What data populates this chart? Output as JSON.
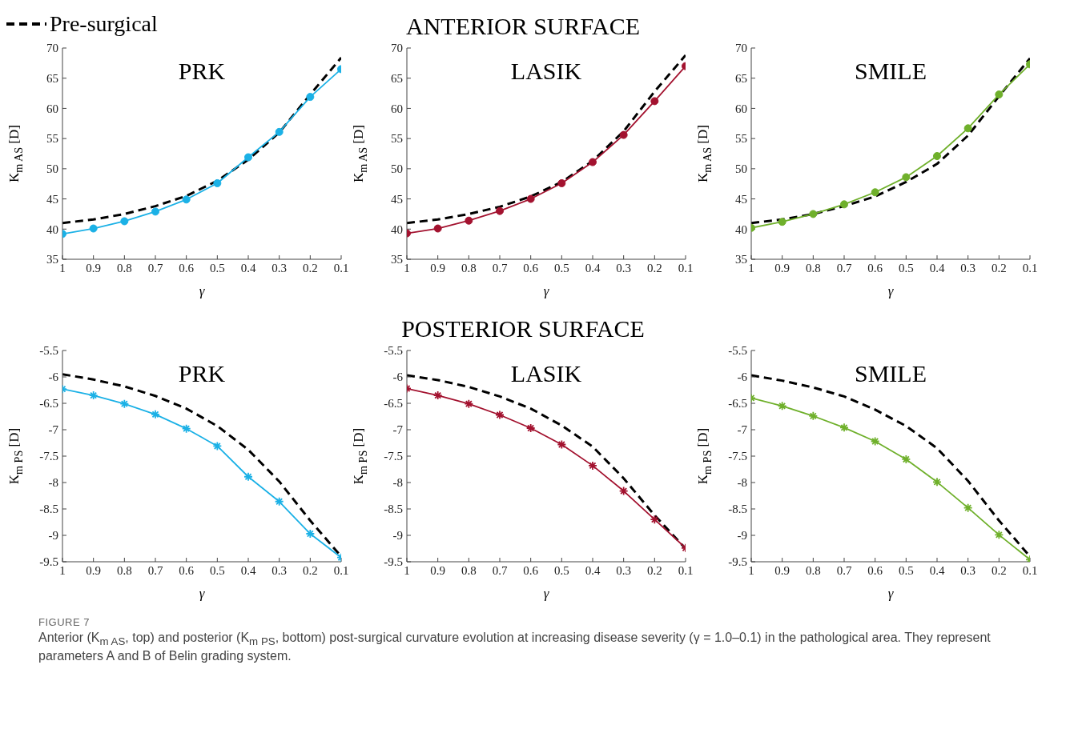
{
  "chart_data": [
    {
      "type": "line",
      "title": "PRK",
      "xlabel": "γ",
      "ylabel": "K$_{m AS}$ [D]",
      "legend": "top left",
      "x": [
        1,
        0.9,
        0.8,
        0.7,
        0.6,
        0.5,
        0.4,
        0.3,
        0.2,
        0.1
      ],
      "xlim": [
        1,
        0.1
      ],
      "xticks": [
        1,
        0.9,
        0.8,
        0.7,
        0.6,
        0.5,
        0.4,
        0.3,
        0.2,
        0.1
      ],
      "ylim": [
        35,
        70
      ],
      "yticks": [
        35,
        40,
        45,
        50,
        55,
        60,
        65,
        70
      ],
      "grid": false,
      "series": [
        {
          "name": "Pre-surgical",
          "color": "#000000",
          "line_style": "dashed",
          "marker": "none",
          "values": [
            41.0,
            41.6,
            42.5,
            43.8,
            45.5,
            48.0,
            51.5,
            56.0,
            62.3,
            68.4
          ]
        },
        {
          "color": "#1bb1e6",
          "line_style": "solid",
          "marker": "circle",
          "values": [
            39.2,
            40.1,
            41.3,
            42.9,
            44.9,
            47.6,
            51.9,
            56.1,
            61.9,
            66.5
          ]
        }
      ]
    },
    {
      "type": "line",
      "title": "LASIK",
      "subtitle": "ANTERIOR SURFACE",
      "xlabel": "γ",
      "ylabel": "K$_{m AS}$ [D]",
      "x": [
        1,
        0.9,
        0.8,
        0.7,
        0.6,
        0.5,
        0.4,
        0.3,
        0.2,
        0.1
      ],
      "xlim": [
        1,
        0.1
      ],
      "xticks": [
        1,
        0.9,
        0.8,
        0.7,
        0.6,
        0.5,
        0.4,
        0.3,
        0.2,
        0.1
      ],
      "ylim": [
        35,
        70
      ],
      "yticks": [
        35,
        40,
        45,
        50,
        55,
        60,
        65,
        70
      ],
      "grid": false,
      "series": [
        {
          "color": "#000000",
          "line_style": "dashed",
          "marker": "none",
          "values": [
            41.0,
            41.6,
            42.5,
            43.7,
            45.4,
            47.8,
            51.3,
            56.2,
            62.8,
            68.8
          ]
        },
        {
          "color": "#a3122f",
          "line_style": "solid",
          "marker": "circle",
          "values": [
            39.3,
            40.1,
            41.4,
            43.0,
            45.0,
            47.6,
            51.1,
            55.6,
            61.2,
            67.0
          ]
        }
      ]
    },
    {
      "type": "line",
      "title": "SMILE",
      "xlabel": "γ",
      "ylabel": "K$_{m AS}$ [D]",
      "x": [
        1,
        0.9,
        0.8,
        0.7,
        0.6,
        0.5,
        0.4,
        0.3,
        0.2,
        0.1
      ],
      "xlim": [
        1,
        0.1
      ],
      "xticks": [
        1,
        0.9,
        0.8,
        0.7,
        0.6,
        0.5,
        0.4,
        0.3,
        0.2,
        0.1
      ],
      "ylim": [
        35,
        70
      ],
      "yticks": [
        35,
        40,
        45,
        50,
        55,
        60,
        65,
        70
      ],
      "grid": false,
      "series": [
        {
          "color": "#000000",
          "line_style": "dashed",
          "marker": "none",
          "values": [
            41.0,
            41.6,
            42.5,
            43.8,
            45.4,
            47.8,
            50.8,
            55.5,
            62.0,
            68.3
          ]
        },
        {
          "color": "#6fb02b",
          "line_style": "solid",
          "marker": "circle",
          "values": [
            40.2,
            41.2,
            42.5,
            44.1,
            46.1,
            48.6,
            52.1,
            56.7,
            62.3,
            67.3
          ]
        }
      ]
    },
    {
      "type": "line",
      "title": "PRK",
      "xlabel": "γ",
      "ylabel": "K$_{m PS}$ [D]",
      "x": [
        1,
        0.9,
        0.8,
        0.7,
        0.6,
        0.5,
        0.4,
        0.3,
        0.2,
        0.1
      ],
      "xlim": [
        1,
        0.1
      ],
      "xticks": [
        1,
        0.9,
        0.8,
        0.7,
        0.6,
        0.5,
        0.4,
        0.3,
        0.2,
        0.1
      ],
      "ylim": [
        -9.5,
        -5.5
      ],
      "yticks": [
        -9.5,
        -9,
        -8.5,
        -8,
        -7.5,
        -7,
        -6.5,
        -6,
        -5.5
      ],
      "grid": false,
      "series": [
        {
          "color": "#000000",
          "line_style": "dashed",
          "marker": "none",
          "values": [
            -5.95,
            -6.05,
            -6.18,
            -6.36,
            -6.6,
            -6.93,
            -7.38,
            -7.98,
            -8.72,
            -9.4
          ]
        },
        {
          "color": "#1bb1e6",
          "line_style": "solid",
          "marker": "cross",
          "values": [
            -6.23,
            -6.35,
            -6.51,
            -6.71,
            -6.98,
            -7.31,
            -7.89,
            -8.36,
            -8.97,
            -9.42
          ]
        }
      ]
    },
    {
      "type": "line",
      "title": "LASIK",
      "subtitle": "POSTERIOR SURFACE",
      "xlabel": "γ",
      "ylabel": "K$_{m PS}$ [D]",
      "x": [
        1,
        0.9,
        0.8,
        0.7,
        0.6,
        0.5,
        0.4,
        0.3,
        0.2,
        0.1
      ],
      "xlim": [
        1,
        0.1
      ],
      "xticks": [
        1,
        0.9,
        0.8,
        0.7,
        0.6,
        0.5,
        0.4,
        0.3,
        0.2,
        0.1
      ],
      "ylim": [
        -9.5,
        -5.5
      ],
      "yticks": [
        -9.5,
        -9,
        -8.5,
        -8,
        -7.5,
        -7,
        -6.5,
        -6,
        -5.5
      ],
      "grid": false,
      "series": [
        {
          "color": "#000000",
          "line_style": "dashed",
          "marker": "none",
          "values": [
            -5.97,
            -6.06,
            -6.19,
            -6.37,
            -6.6,
            -6.92,
            -7.32,
            -7.92,
            -8.62,
            -9.25
          ]
        },
        {
          "color": "#a3122f",
          "line_style": "solid",
          "marker": "cross",
          "values": [
            -6.22,
            -6.35,
            -6.51,
            -6.72,
            -6.97,
            -7.28,
            -7.68,
            -8.16,
            -8.7,
            -9.24
          ]
        }
      ]
    },
    {
      "type": "line",
      "title": "SMILE",
      "xlabel": "γ",
      "ylabel": "K$_{m PS}$ [D]",
      "x": [
        1,
        0.9,
        0.8,
        0.7,
        0.6,
        0.5,
        0.4,
        0.3,
        0.2,
        0.1
      ],
      "xlim": [
        1,
        0.1
      ],
      "xticks": [
        1,
        0.9,
        0.8,
        0.7,
        0.6,
        0.5,
        0.4,
        0.3,
        0.2,
        0.1
      ],
      "ylim": [
        -9.5,
        -5.5
      ],
      "yticks": [
        -9.5,
        -9,
        -8.5,
        -8,
        -7.5,
        -7,
        -6.5,
        -6,
        -5.5
      ],
      "grid": false,
      "series": [
        {
          "color": "#000000",
          "line_style": "dashed",
          "marker": "none",
          "values": [
            -5.97,
            -6.07,
            -6.2,
            -6.37,
            -6.62,
            -6.93,
            -7.35,
            -7.97,
            -8.72,
            -9.4
          ]
        },
        {
          "color": "#6fb02b",
          "line_style": "solid",
          "marker": "cross",
          "values": [
            -6.4,
            -6.55,
            -6.74,
            -6.96,
            -7.22,
            -7.56,
            -7.99,
            -8.48,
            -8.99,
            -9.46
          ]
        }
      ],
      "annotations": [
        "FIGURE 7",
        "Anterior (K$_{m AS}$, top) and posterior (K$_{m PS}$, bottom) post-surgical curvature evolution at increasing disease severity (γ = 1.0–0.1) in the pathological area. They represent parameters A and B of Belin grading system."
      ]
    }
  ]
}
